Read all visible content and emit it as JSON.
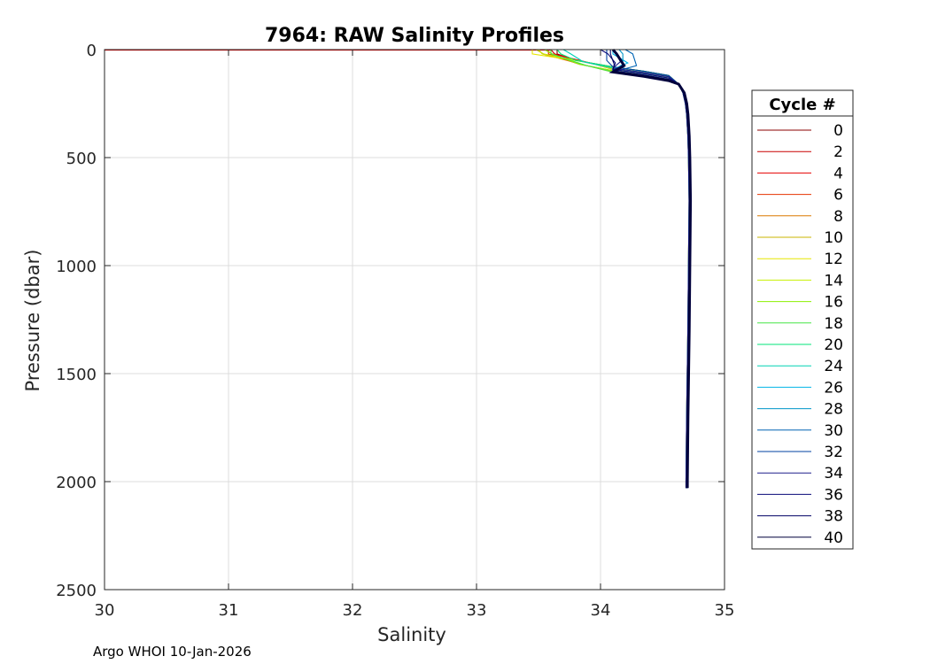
{
  "chart_data": {
    "type": "line",
    "title": "7964: RAW Salinity Profiles",
    "xlabel": "Salinity",
    "ylabel": "Pressure (dbar)",
    "xlim": [
      30,
      35
    ],
    "ylim": [
      0,
      2500
    ],
    "y_reversed": true,
    "grid": true,
    "xticks": [
      30,
      31,
      32,
      33,
      34,
      35
    ],
    "yticks": [
      0,
      500,
      1000,
      1500,
      2000,
      2500
    ],
    "footer": "Argo WHOI 10-Jan-2026",
    "legend": {
      "title": "Cycle #",
      "position": "right",
      "entries": [
        {
          "label": "0",
          "color": "#8b0000"
        },
        {
          "label": "2",
          "color": "#c80000"
        },
        {
          "label": "4",
          "color": "#e60000"
        },
        {
          "label": "6",
          "color": "#e63200"
        },
        {
          "label": "8",
          "color": "#dc7800"
        },
        {
          "label": "10",
          "color": "#c8b400"
        },
        {
          "label": "12",
          "color": "#e6e600"
        },
        {
          "label": "14",
          "color": "#c8f000"
        },
        {
          "label": "16",
          "color": "#8cf000"
        },
        {
          "label": "18",
          "color": "#46e646"
        },
        {
          "label": "20",
          "color": "#00e678"
        },
        {
          "label": "24",
          "color": "#00d2b4"
        },
        {
          "label": "26",
          "color": "#00b4e6"
        },
        {
          "label": "28",
          "color": "#0096c8"
        },
        {
          "label": "30",
          "color": "#0064b4"
        },
        {
          "label": "32",
          "color": "#0041a0"
        },
        {
          "label": "34",
          "color": "#1e1e8c"
        },
        {
          "label": "36",
          "color": "#0a0a78"
        },
        {
          "label": "38",
          "color": "#000064"
        },
        {
          "label": "40",
          "color": "#00003c"
        }
      ]
    },
    "profile_base": {
      "pressure": [
        0,
        20,
        60,
        90,
        110,
        130,
        160,
        200,
        250,
        300,
        400,
        500,
        700,
        1000,
        1300,
        1500,
        1700,
        2000,
        2030
      ],
      "salinity": [
        33.6,
        33.65,
        33.8,
        34.1,
        34.35,
        34.55,
        34.63,
        34.67,
        34.69,
        34.7,
        34.71,
        34.715,
        34.72,
        34.715,
        34.71,
        34.705,
        34.7,
        34.695,
        34.695
      ]
    },
    "surface_salinity": [
      33.65,
      33.6,
      33.55,
      33.58,
      33.5,
      33.48,
      33.45,
      33.5,
      33.55,
      33.6,
      33.65,
      33.7,
      34.1,
      34.15,
      34.2,
      34.05,
      34.1,
      34.0,
      34.08,
      34.1
    ],
    "outlier_surface_trace": {
      "salinity_start": 30,
      "salinity_end": 33.6,
      "pressure": 2
    }
  }
}
